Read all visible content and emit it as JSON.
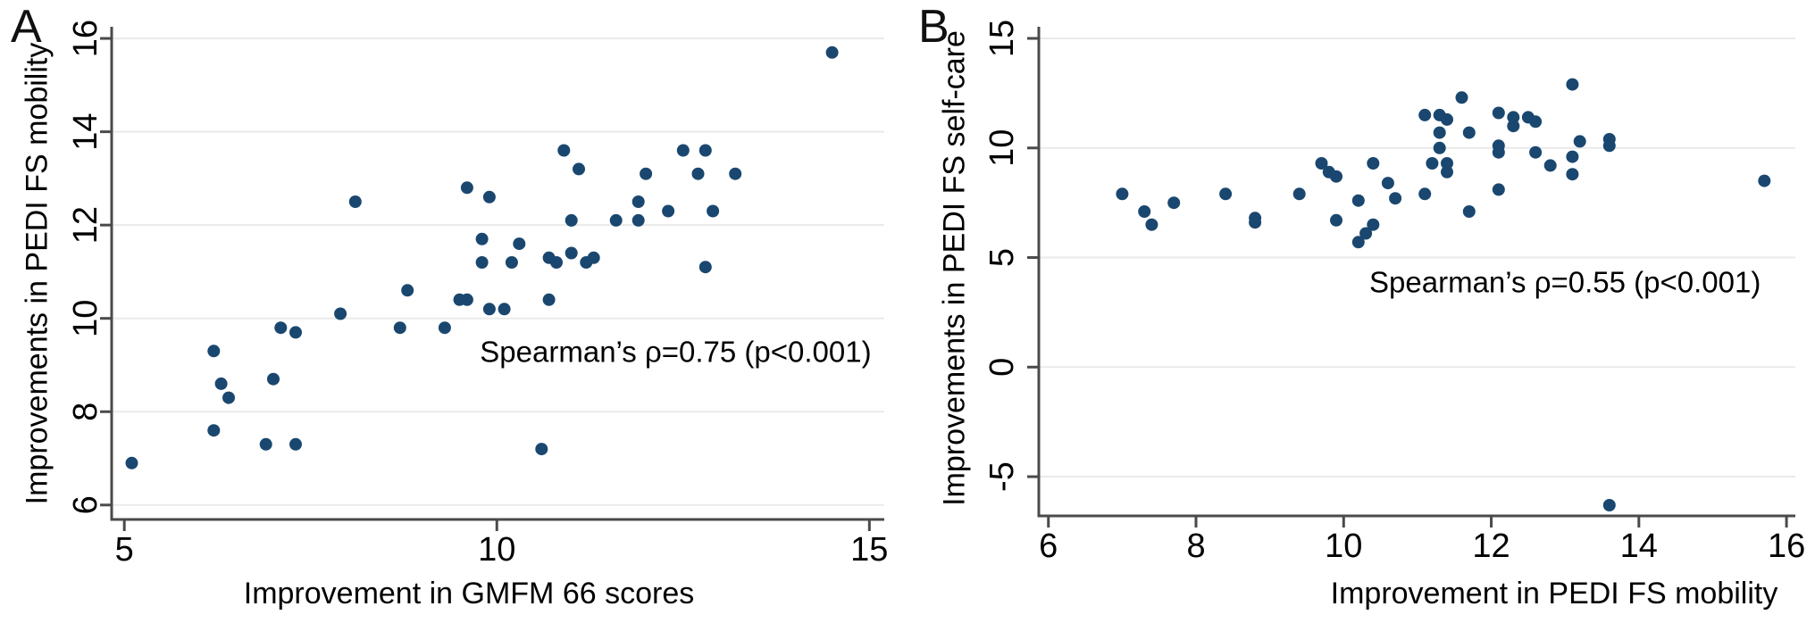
{
  "style": {
    "background": "#ffffff",
    "dot_color": "#1a476f",
    "grid_color": "#eaeaea",
    "axis_color": "#4a4a4a",
    "text_color": "#000000"
  },
  "chart_data": [
    {
      "type": "scatter",
      "panel_label": "A",
      "xlabel": "Improvement in GMFM 66 scores",
      "ylabel": "Improvements in PEDI FS mobility",
      "annotation": "Spearman’s ρ=0.75 (p<0.001)",
      "annotation_xy": [
        12.4,
        9.3
      ],
      "x_ticks": [
        5,
        10,
        15
      ],
      "y_ticks": [
        6,
        8,
        10,
        12,
        14,
        16
      ],
      "xlim": [
        4.83,
        15.2
      ],
      "ylim": [
        5.69,
        16.25
      ],
      "grid": "horizontal-only",
      "legend_position": "none",
      "marker": {
        "shape": "circle",
        "radius_px": 7
      },
      "points": [
        [
          5.1,
          6.9
        ],
        [
          6.2,
          9.3
        ],
        [
          6.3,
          8.6
        ],
        [
          6.4,
          8.3
        ],
        [
          6.2,
          7.6
        ],
        [
          6.9,
          7.3
        ],
        [
          7.3,
          7.3
        ],
        [
          7.0,
          8.7
        ],
        [
          7.1,
          9.8
        ],
        [
          7.3,
          9.7
        ],
        [
          7.9,
          10.1
        ],
        [
          8.1,
          12.5
        ],
        [
          8.7,
          9.8
        ],
        [
          8.8,
          10.6
        ],
        [
          9.3,
          9.8
        ],
        [
          9.6,
          12.8
        ],
        [
          9.9,
          12.6
        ],
        [
          10.9,
          13.6
        ],
        [
          11.1,
          13.2
        ],
        [
          9.8,
          11.7
        ],
        [
          10.3,
          11.6
        ],
        [
          9.8,
          11.2
        ],
        [
          10.2,
          11.2
        ],
        [
          10.7,
          11.3
        ],
        [
          10.8,
          11.2
        ],
        [
          11.0,
          11.4
        ],
        [
          11.2,
          11.2
        ],
        [
          11.3,
          11.3
        ],
        [
          9.5,
          10.4
        ],
        [
          9.6,
          10.4
        ],
        [
          9.9,
          10.2
        ],
        [
          10.1,
          10.2
        ],
        [
          10.7,
          10.4
        ],
        [
          11.0,
          12.1
        ],
        [
          11.6,
          12.1
        ],
        [
          10.6,
          7.2
        ],
        [
          11.9,
          12.5
        ],
        [
          12.3,
          12.3
        ],
        [
          12.9,
          12.3
        ],
        [
          11.9,
          12.1
        ],
        [
          12.5,
          13.6
        ],
        [
          12.8,
          13.6
        ],
        [
          12.0,
          13.1
        ],
        [
          12.7,
          13.1
        ],
        [
          13.2,
          13.1
        ],
        [
          12.8,
          11.1
        ],
        [
          14.5,
          15.7
        ]
      ]
    },
    {
      "type": "scatter",
      "panel_label": "B",
      "xlabel": "Improvement in PEDI FS mobility",
      "ylabel": "Improvements in PEDI FS self-care",
      "annotation": "Spearman’s ρ=0.55 (p<0.001)",
      "annotation_xy": [
        13.0,
        3.9
      ],
      "x_ticks": [
        6,
        8,
        10,
        12,
        14,
        16
      ],
      "y_ticks": [
        -5,
        0,
        5,
        10,
        15
      ],
      "xlim": [
        5.87,
        16.12
      ],
      "ylim": [
        -6.79,
        15.53
      ],
      "grid": "horizontal-only",
      "legend_position": "none",
      "marker": {
        "shape": "circle",
        "radius_px": 7
      },
      "points": [
        [
          7.0,
          7.9
        ],
        [
          7.3,
          7.1
        ],
        [
          7.4,
          6.5
        ],
        [
          7.7,
          7.5
        ],
        [
          8.4,
          7.9
        ],
        [
          8.8,
          6.8
        ],
        [
          8.8,
          6.6
        ],
        [
          9.4,
          7.9
        ],
        [
          9.7,
          9.3
        ],
        [
          9.8,
          8.9
        ],
        [
          9.9,
          8.7
        ],
        [
          10.2,
          7.6
        ],
        [
          9.9,
          6.7
        ],
        [
          10.2,
          5.7
        ],
        [
          10.3,
          6.1
        ],
        [
          10.4,
          6.5
        ],
        [
          10.4,
          9.3
        ],
        [
          10.6,
          8.4
        ],
        [
          10.7,
          7.7
        ],
        [
          11.1,
          7.9
        ],
        [
          11.7,
          7.1
        ],
        [
          12.1,
          8.1
        ],
        [
          11.6,
          12.3
        ],
        [
          13.1,
          12.9
        ],
        [
          11.1,
          11.5
        ],
        [
          11.3,
          11.5
        ],
        [
          11.4,
          11.3
        ],
        [
          12.1,
          11.6
        ],
        [
          12.3,
          11.4
        ],
        [
          12.3,
          11.0
        ],
        [
          12.5,
          11.4
        ],
        [
          12.6,
          11.2
        ],
        [
          11.3,
          10.7
        ],
        [
          11.7,
          10.7
        ],
        [
          11.3,
          10.0
        ],
        [
          12.1,
          10.1
        ],
        [
          12.1,
          9.8
        ],
        [
          12.6,
          9.8
        ],
        [
          13.2,
          10.3
        ],
        [
          13.6,
          10.4
        ],
        [
          13.6,
          10.1
        ],
        [
          13.1,
          9.6
        ],
        [
          11.2,
          9.3
        ],
        [
          11.4,
          9.3
        ],
        [
          11.4,
          8.9
        ],
        [
          12.8,
          9.2
        ],
        [
          13.1,
          8.8
        ],
        [
          15.7,
          8.5
        ],
        [
          13.6,
          -6.3
        ]
      ]
    }
  ]
}
